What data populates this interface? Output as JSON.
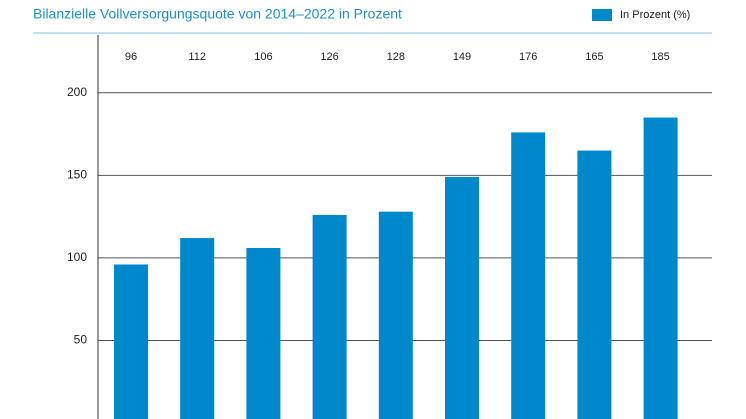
{
  "chart_data": {
    "type": "bar",
    "title": "Bilanzielle Vollversorgungsquote von 2014–2022 in Prozent",
    "categories": [
      null,
      null,
      null,
      null,
      null,
      null,
      null,
      null,
      null
    ],
    "series": [
      {
        "name": "In Prozent (%)",
        "color": "#0088cc",
        "values": [
          96,
          112,
          106,
          126,
          128,
          149,
          176,
          165,
          185
        ]
      }
    ],
    "ylim": [
      0,
      235
    ],
    "yticks": [
      50,
      100,
      150,
      200
    ],
    "grid": true,
    "legend": "top-right"
  }
}
